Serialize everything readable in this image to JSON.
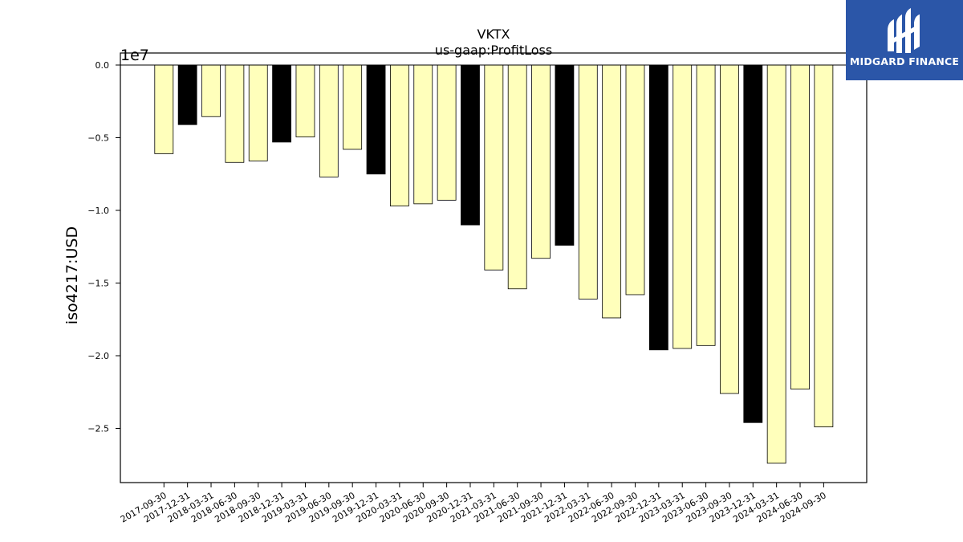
{
  "logo": {
    "text": "MIDGARD FINANCE",
    "icon": "midgard-logo-icon",
    "background": "#2b56a8"
  },
  "colors": {
    "quarter_bar": "#ffffbb",
    "annual_bar": "#000000",
    "edge": "#000000"
  },
  "chart_data": {
    "type": "bar",
    "title": "VKTX",
    "subtitle": "us-gaap:ProfitLoss",
    "ylabel": "iso4217:USD",
    "xlabel": "",
    "y_scale_label": "1e7",
    "y_unit_multiplier": 10000000,
    "ylim": [
      -2.88,
      0
    ],
    "yticks": [
      0.0,
      -0.5,
      -1.0,
      -1.5,
      -2.0,
      -2.5
    ],
    "ytick_labels": [
      "0.0",
      "−0.5",
      "−1.0",
      "−1.5",
      "−2.0",
      "−2.5"
    ],
    "grid": false,
    "legend": "none",
    "categories": [
      "2017-09-30",
      "2017-12-31",
      "2018-03-31",
      "2018-06-30",
      "2018-09-30",
      "2018-12-31",
      "2019-03-31",
      "2019-06-30",
      "2019-09-30",
      "2019-12-31",
      "2020-03-31",
      "2020-06-30",
      "2020-09-30",
      "2020-12-31",
      "2021-03-31",
      "2021-06-30",
      "2021-09-30",
      "2021-12-31",
      "2022-03-31",
      "2022-06-30",
      "2022-09-30",
      "2022-12-31",
      "2023-03-31",
      "2023-06-30",
      "2023-09-30",
      "2023-12-31",
      "2024-03-31",
      "2024-06-30",
      "2024-09-30"
    ],
    "values": [
      -6100000,
      -4100000,
      -3550000,
      -6700000,
      -6600000,
      -5300000,
      -4950000,
      -7700000,
      -5800000,
      -7500000,
      -9700000,
      -9550000,
      -9300000,
      -11000000,
      -14100000,
      -15400000,
      -13300000,
      -12400000,
      -16100000,
      -17400000,
      -15800000,
      -19600000,
      -19500000,
      -19300000,
      -22600000,
      -24600000,
      -27400000,
      -22300000,
      -24900000
    ],
    "annual": [
      false,
      true,
      false,
      false,
      false,
      true,
      false,
      false,
      false,
      true,
      false,
      false,
      false,
      true,
      false,
      false,
      false,
      true,
      false,
      false,
      false,
      true,
      false,
      false,
      false,
      true,
      false,
      false,
      false
    ]
  }
}
